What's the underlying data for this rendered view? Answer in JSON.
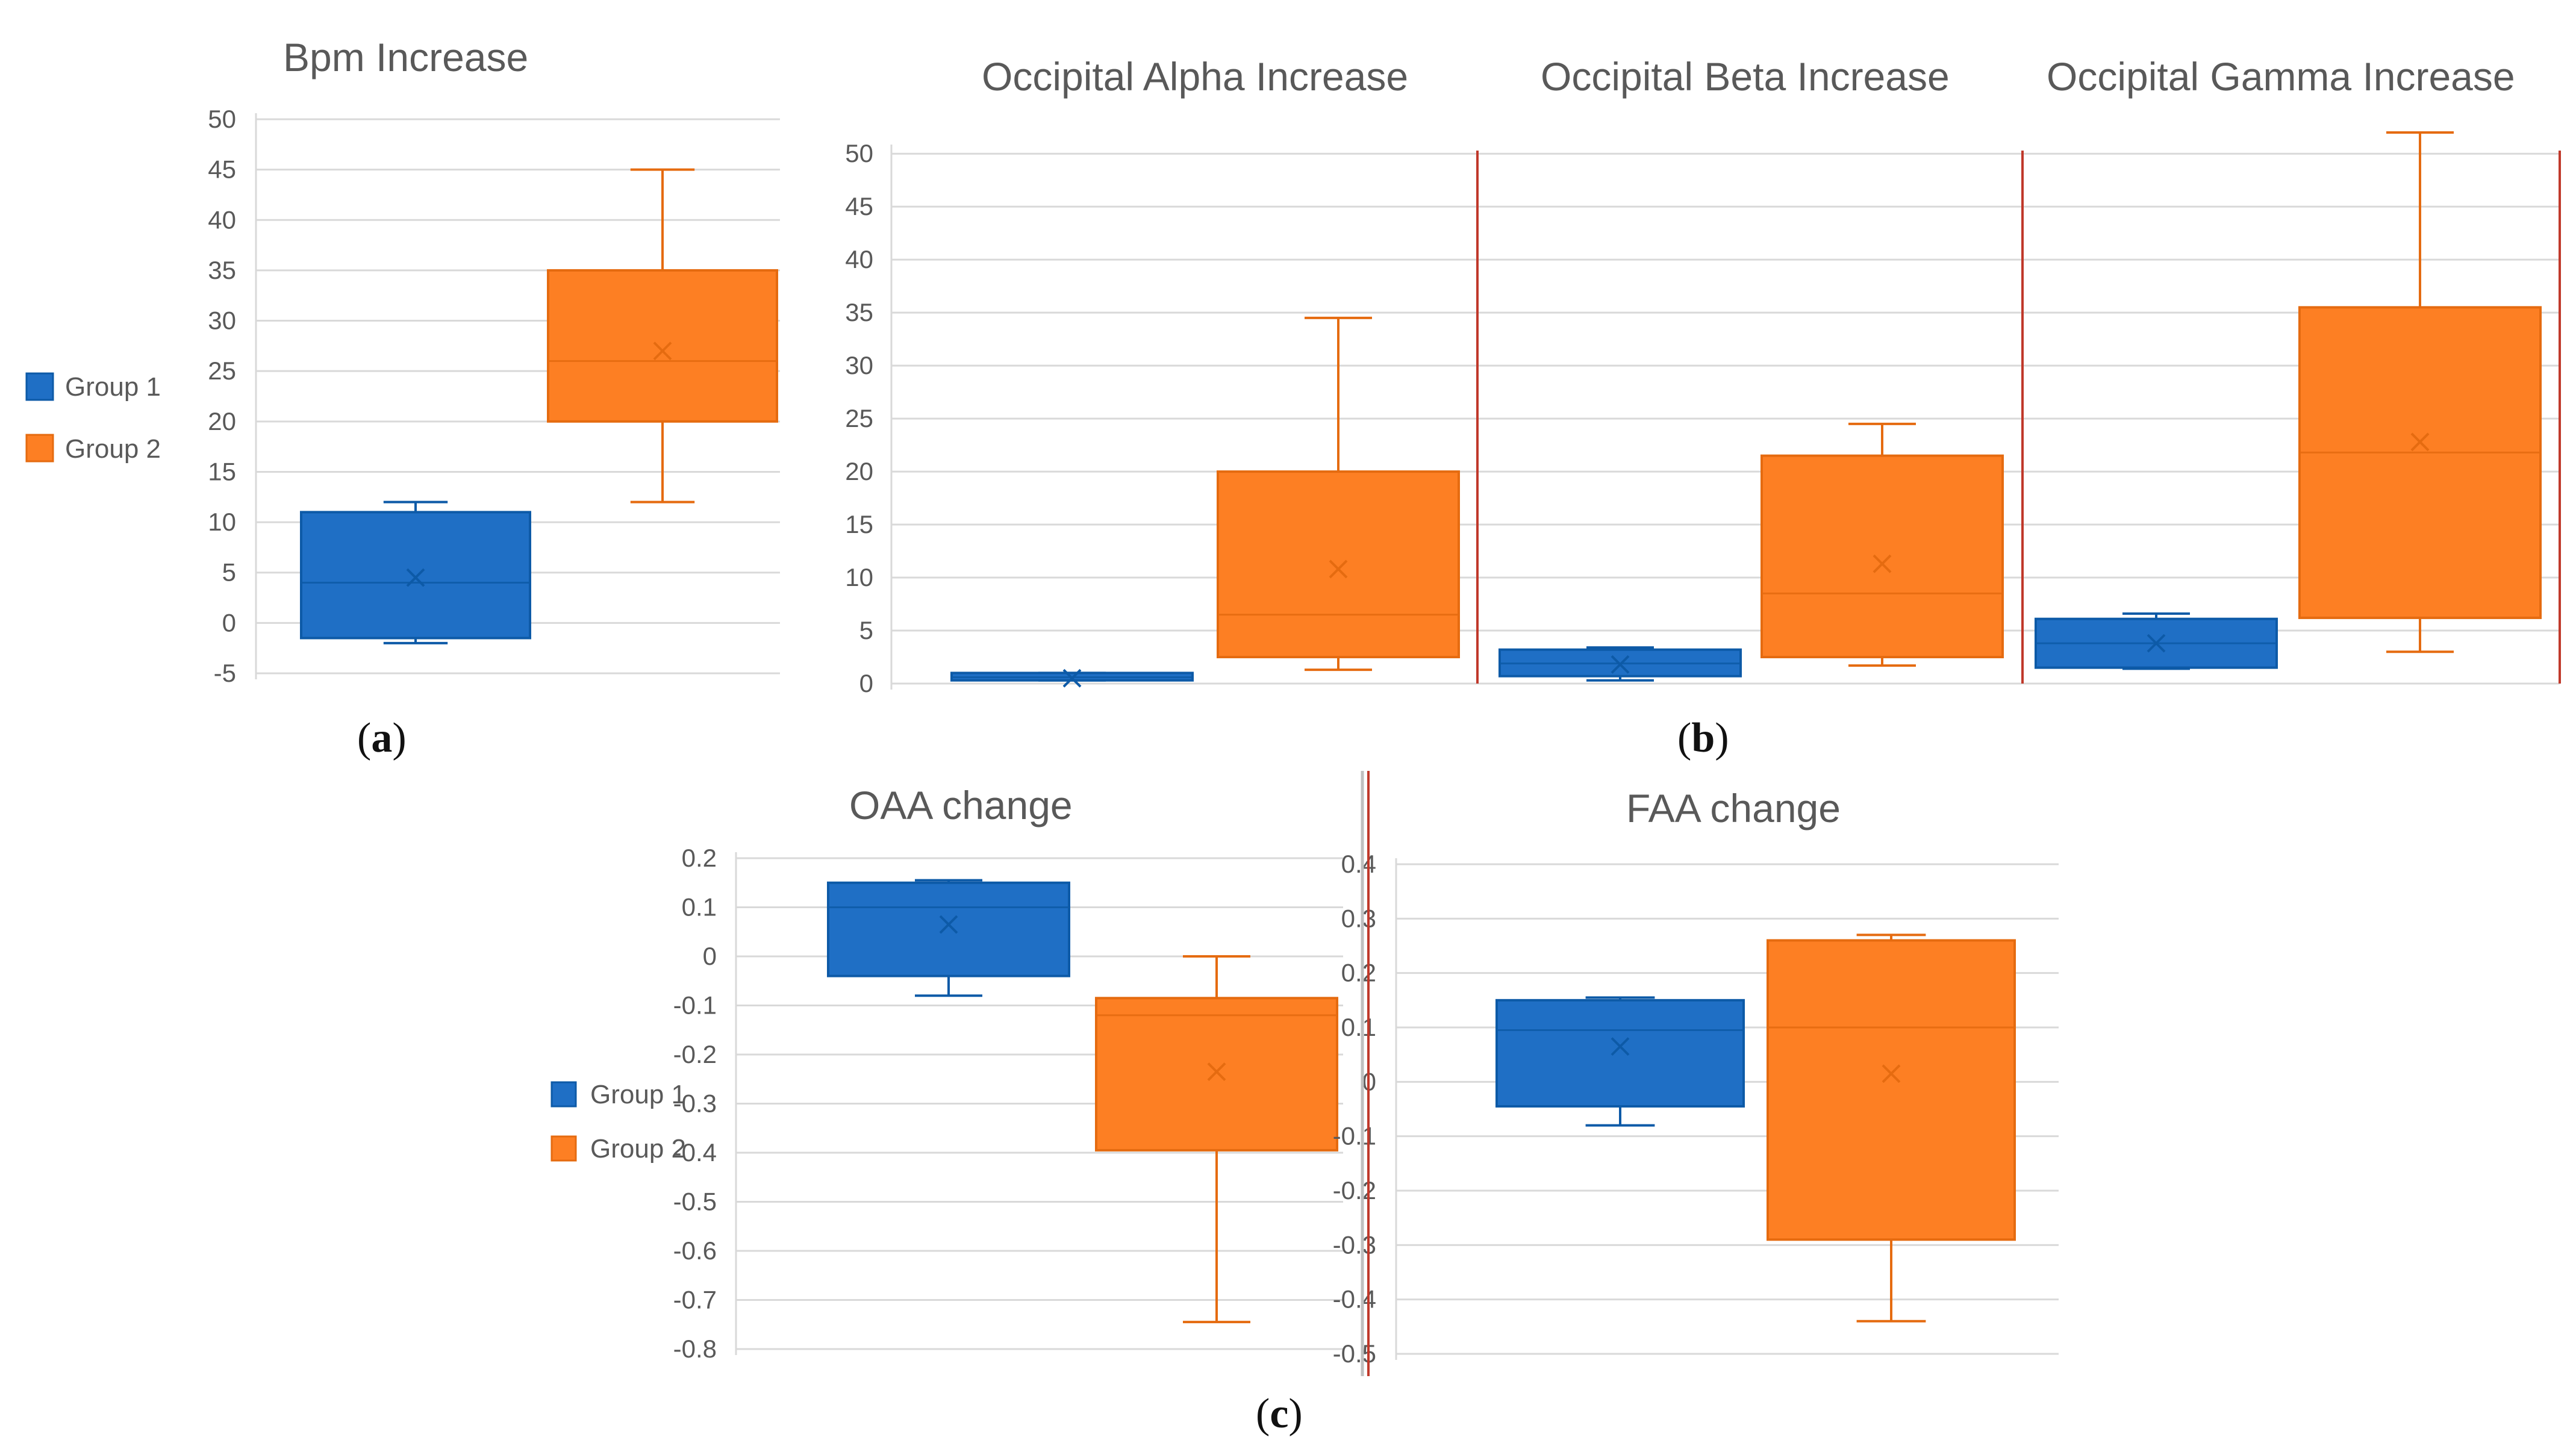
{
  "legend": {
    "groups": [
      {
        "name": "Group 1",
        "color": "#1f6fc5",
        "stroke": "#0d5aa7"
      },
      {
        "name": "Group 2",
        "color": "#fd7f23",
        "stroke": "#e56b10"
      }
    ]
  },
  "panel_labels": {
    "a": {
      "open": "(",
      "letter": "a",
      "close": ")"
    },
    "b": {
      "open": "(",
      "letter": "b",
      "close": ")"
    },
    "c": {
      "open": "(",
      "letter": "c",
      "close": ")"
    }
  },
  "chart_data": [
    {
      "id": "bpm",
      "type": "box",
      "title": "Bpm Increase",
      "ylim": [
        -5,
        50
      ],
      "yticks": [
        "-5",
        "0",
        "5",
        "10",
        "15",
        "20",
        "25",
        "30",
        "35",
        "40",
        "45",
        "50"
      ],
      "tick_values": [
        -5,
        0,
        5,
        10,
        15,
        20,
        25,
        30,
        35,
        40,
        45,
        50
      ],
      "series": [
        {
          "name": "Group 1",
          "min": -2,
          "q1": -1.5,
          "median": 4,
          "q3": 11,
          "max": 12,
          "mean": 4.5
        },
        {
          "name": "Group 2",
          "min": 12,
          "q1": 20,
          "median": 26,
          "q3": 35,
          "max": 45,
          "mean": 27
        }
      ]
    },
    {
      "id": "alpha",
      "type": "box",
      "title": "Occipital Alpha Increase",
      "ylim": [
        0,
        52
      ],
      "yticks": [
        "0",
        "5",
        "10",
        "15",
        "20",
        "25",
        "30",
        "35",
        "40",
        "45",
        "50"
      ],
      "tick_values": [
        0,
        5,
        10,
        15,
        20,
        25,
        30,
        35,
        40,
        45,
        50
      ],
      "series": [
        {
          "name": "Group 1",
          "min": 0.3,
          "q1": 0.3,
          "median": 0.6,
          "q3": 1,
          "max": 1,
          "mean": 0.5
        },
        {
          "name": "Group 2",
          "min": 1.3,
          "q1": 2.5,
          "median": 6.5,
          "q3": 20,
          "max": 34.5,
          "mean": 10.8
        }
      ]
    },
    {
      "id": "beta",
      "type": "box",
      "title": "Occipital Beta Increase",
      "ylim": [
        0,
        52
      ],
      "yticks": [],
      "tick_values": [
        0,
        5,
        10,
        15,
        20,
        25,
        30,
        35,
        40,
        45,
        50
      ],
      "series": [
        {
          "name": "Group 1",
          "min": 0.3,
          "q1": 0.7,
          "median": 1.9,
          "q3": 3.2,
          "max": 3.4,
          "mean": 1.8
        },
        {
          "name": "Group 2",
          "min": 1.7,
          "q1": 2.5,
          "median": 8.5,
          "q3": 21.5,
          "max": 24.5,
          "mean": 11.3
        }
      ]
    },
    {
      "id": "gamma",
      "type": "box",
      "title": "Occipital Gamma Increase",
      "ylim": [
        0,
        52
      ],
      "yticks": [],
      "tick_values": [
        0,
        5,
        10,
        15,
        20,
        25,
        30,
        35,
        40,
        45,
        50
      ],
      "series": [
        {
          "name": "Group 1",
          "min": 1.4,
          "q1": 1.5,
          "median": 3.8,
          "q3": 6.1,
          "max": 6.6,
          "mean": 3.8
        },
        {
          "name": "Group 2",
          "min": 3,
          "q1": 6.2,
          "median": 21.8,
          "q3": 35.5,
          "max": 52,
          "mean": 22.8
        }
      ]
    },
    {
      "id": "oaa",
      "type": "box",
      "title": "OAA change",
      "ylim": [
        -0.8,
        0.2
      ],
      "yticks": [
        "0.2",
        "0.1",
        "0",
        "-0.1",
        "-0.2",
        "-0.3",
        "-0.4",
        "-0.5",
        "-0.6",
        "-0.7",
        "-0.8"
      ],
      "tick_values": [
        0.2,
        0.1,
        0,
        -0.1,
        -0.2,
        -0.3,
        -0.4,
        -0.5,
        -0.6,
        -0.7,
        -0.8
      ],
      "series": [
        {
          "name": "Group 1",
          "min": -0.08,
          "q1": -0.04,
          "median": 0.1,
          "q3": 0.15,
          "max": 0.155,
          "mean": 0.065
        },
        {
          "name": "Group 2",
          "min": -0.745,
          "q1": -0.395,
          "median": -0.12,
          "q3": -0.085,
          "max": 0,
          "mean": -0.235
        }
      ]
    },
    {
      "id": "faa",
      "type": "box",
      "title": "FAA change",
      "ylim": [
        -0.5,
        0.4
      ],
      "yticks": [
        "0.4",
        "0.3",
        "0.2",
        "0.1",
        "0",
        "-0.1",
        "-0.2",
        "-0.3",
        "-0.4",
        "-0.5"
      ],
      "tick_values": [
        0.4,
        0.3,
        0.2,
        0.1,
        0,
        -0.1,
        -0.2,
        -0.3,
        -0.4,
        -0.5
      ],
      "series": [
        {
          "name": "Group 1",
          "min": -0.08,
          "q1": -0.045,
          "median": 0.095,
          "q3": 0.15,
          "max": 0.155,
          "mean": 0.065
        },
        {
          "name": "Group 2",
          "min": -0.44,
          "q1": -0.29,
          "median": 0.1,
          "q3": 0.26,
          "max": 0.27,
          "mean": 0.015
        }
      ]
    }
  ]
}
